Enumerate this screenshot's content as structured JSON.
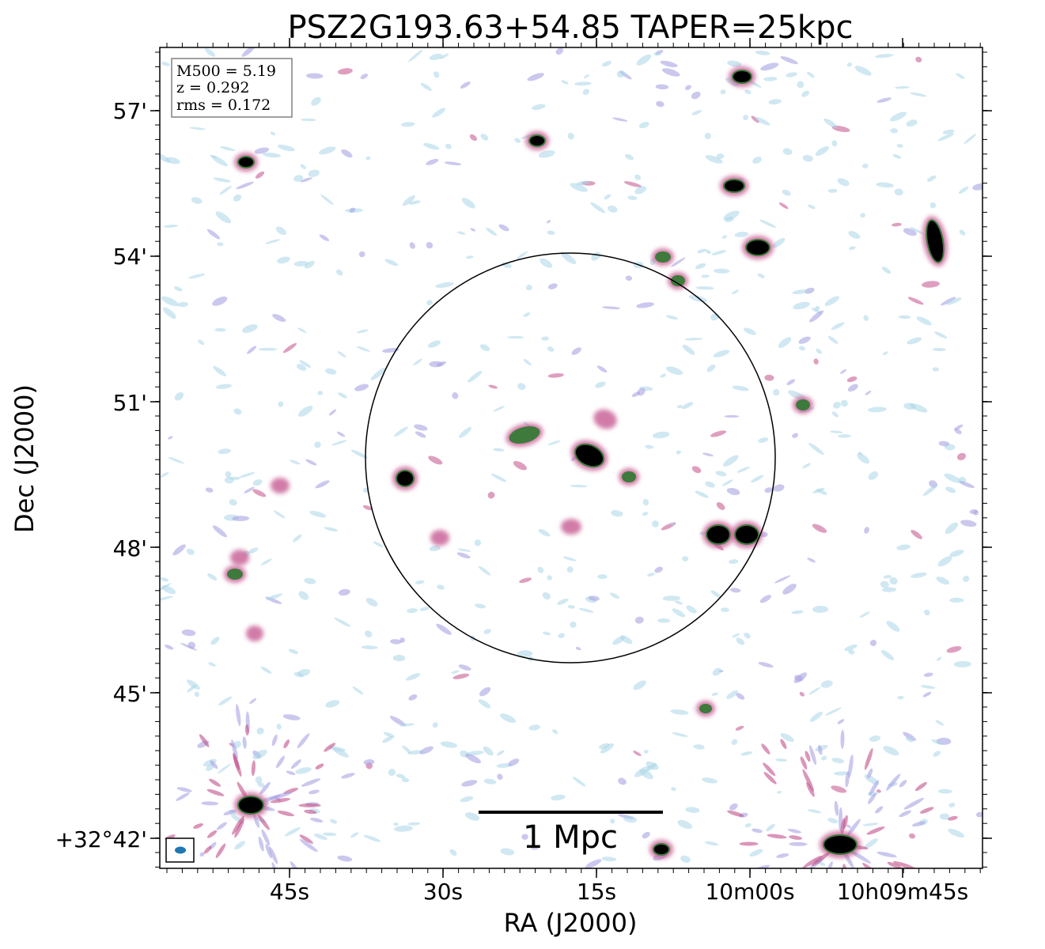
{
  "title": "PSZ2G193.63+54.85 TAPER=25kpc",
  "axes": {
    "xlabel": "RA (J2000)",
    "ylabel": "Dec (J2000)",
    "xticks": [
      "45s",
      "30s",
      "15s",
      "10m00s",
      "10h09m45s"
    ],
    "yticks": [
      "57'",
      "54'",
      "51'",
      "48'",
      "45'",
      "+32°42'"
    ]
  },
  "info": {
    "m500": "M500 = 5.19",
    "z": "z = 0.292",
    "rms": "rms = 0.172"
  },
  "scalebar": {
    "label": "1 Mpc"
  },
  "colors": {
    "frame": "#000000",
    "faint_emission": "#a9d6e8",
    "low_emission": "#a9a4e3",
    "mid_emission": "#c2508a",
    "high_emission": "#3d7a3c",
    "peak_emission": "#000000",
    "beam": "#1f77b4",
    "info_box_border": "#808080"
  }
}
